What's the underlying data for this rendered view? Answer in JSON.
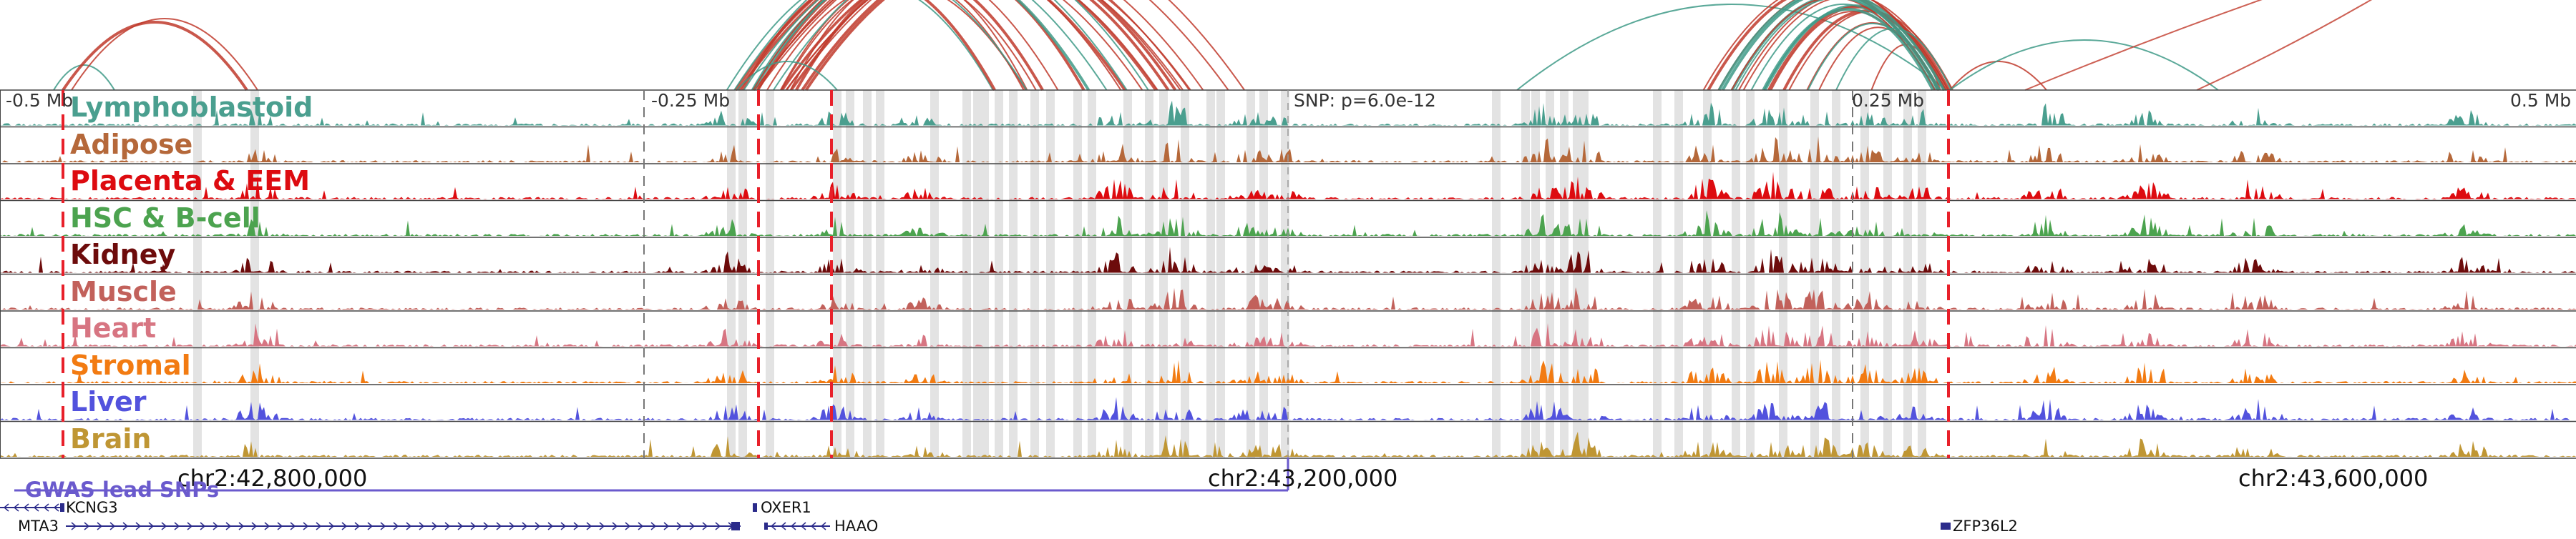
{
  "browser": {
    "track_count": 10,
    "tracks": [
      {
        "name": "Lymphoblastoid",
        "color": "#4a9f8f"
      },
      {
        "name": "Adipose",
        "color": "#b5683a"
      },
      {
        "name": "Placenta & EEM",
        "color": "#dd0b10"
      },
      {
        "name": "HSC & B-cell",
        "color": "#4ca34f"
      },
      {
        "name": "Kidney",
        "color": "#6d0b0b"
      },
      {
        "name": "Muscle",
        "color": "#c2615b"
      },
      {
        "name": "Heart",
        "color": "#d77582"
      },
      {
        "name": "Stromal",
        "color": "#f27b12"
      },
      {
        "name": "Liver",
        "color": "#5252dd"
      },
      {
        "name": "Brain",
        "color": "#bf9634"
      }
    ],
    "position_labels": {
      "minus_half": "-0.5 Mb",
      "minus_quarter": "-0.25 Mb",
      "snp": "SNP: p=6.0e-12",
      "plus_quarter": "0.25 Mb",
      "plus_half": "0.5 Mb"
    },
    "coordinates": {
      "c1": "chr2:42,800,000",
      "c2": "chr2:43,200,000",
      "c3": "chr2:43,600,000"
    },
    "gwas_label": "GWAS lead SNPs",
    "genes": {
      "kcng3": "KCNG3",
      "mta3": "MTA3",
      "oxer1": "OXER1",
      "haao": "HAAO",
      "zfp36l2": "ZFP36L2"
    },
    "colors": {
      "snp_line": "#e8202a",
      "arc_green": "#3e9a87",
      "arc_red": "#c0392b",
      "gene": "#2b2b8a",
      "gwas": "#6a5acd"
    }
  }
}
